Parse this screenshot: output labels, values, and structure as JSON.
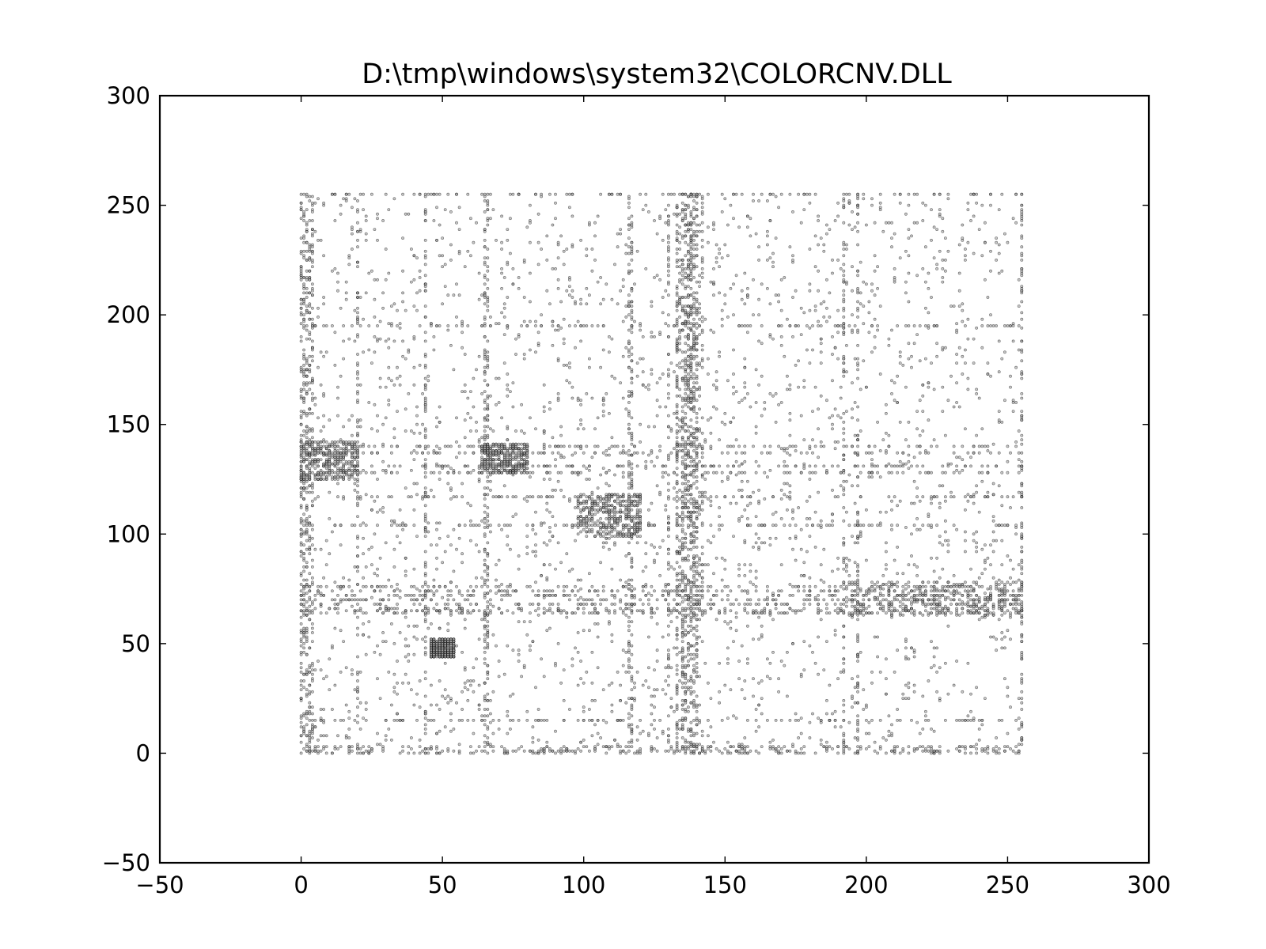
{
  "chart_data": {
    "type": "scatter",
    "title": "D:\\tmp\\windows\\system32\\COLORCNV.DLL",
    "xlabel": "",
    "ylabel": "",
    "xlim": [
      -50,
      300
    ],
    "ylim": [
      -50,
      300
    ],
    "xticks": [
      -50,
      0,
      50,
      100,
      150,
      200,
      250,
      300
    ],
    "yticks": [
      -50,
      0,
      50,
      100,
      150,
      200,
      250,
      300
    ],
    "xtick_labels": [
      "−50",
      "0",
      "50",
      "100",
      "150",
      "200",
      "250",
      "300"
    ],
    "ytick_labels": [
      "−50",
      "0",
      "50",
      "100",
      "150",
      "200",
      "250",
      "300"
    ],
    "grid": false,
    "legend": "none",
    "marker_color": "#000000",
    "data_domain": {
      "x": [
        0,
        255
      ],
      "y": [
        0,
        255
      ]
    },
    "dense_columns_x": [
      0,
      1,
      2,
      3,
      4,
      20,
      44,
      65,
      66,
      116,
      117,
      130,
      133,
      135,
      136,
      137,
      138,
      139,
      140,
      192,
      197,
      255
    ],
    "dense_rows_y": [
      0,
      1,
      2,
      3,
      15,
      64,
      65,
      66,
      68,
      70,
      72,
      74,
      76,
      104,
      117,
      128,
      131,
      137,
      140,
      195,
      255
    ],
    "clusters": [
      {
        "x": [
          64,
          80
        ],
        "y": [
          128,
          141
        ]
      },
      {
        "x": [
          98,
          120
        ],
        "y": [
          99,
          118
        ]
      },
      {
        "x": [
          0,
          20
        ],
        "y": [
          125,
          142
        ]
      },
      {
        "x": [
          193,
          256
        ],
        "y": [
          63,
          78
        ]
      },
      {
        "x": [
          133,
          142
        ],
        "y": [
          60,
          256
        ]
      },
      {
        "x": [
          46,
          54
        ],
        "y": [
          44,
          52
        ]
      }
    ],
    "point_count": 9000
  }
}
